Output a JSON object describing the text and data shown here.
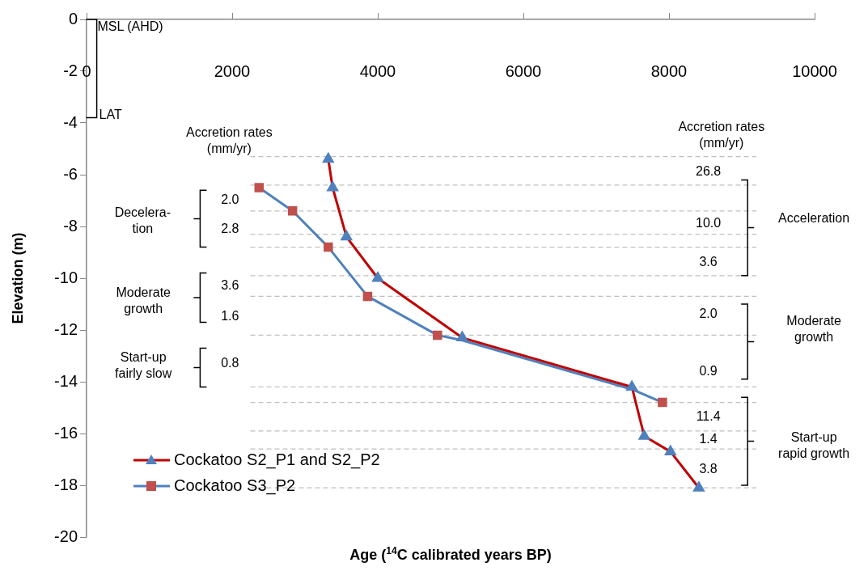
{
  "chart_data": {
    "type": "line",
    "xlabel": "Age ($^{14}$C calibrated years BP)",
    "ylabel": "Elevation (m)",
    "xlim": [
      0,
      10000
    ],
    "xticks": [
      0,
      2000,
      4000,
      6000,
      8000,
      10000
    ],
    "ylim": [
      -20,
      0
    ],
    "yticks": [
      0,
      -2,
      -4,
      -6,
      -8,
      -10,
      -12,
      -14,
      -16,
      -18,
      -20
    ],
    "grid": false,
    "legend": "bottom left",
    "line_style": "solid",
    "series": [
      {
        "name": "Cockatoo S2_P1 and S2_P2",
        "color": "#c00000",
        "marker": "triangle",
        "x": [
          3320,
          3380,
          3570,
          4000,
          5160,
          7490,
          7660,
          8020,
          8410
        ],
        "values": [
          -5.4,
          -6.5,
          -8.4,
          -10.0,
          -12.3,
          -14.2,
          -16.1,
          -16.7,
          -18.1
        ],
        "colors": [
          "#4f81bd",
          "#4f81bd",
          "#4f81bd",
          "#4f81bd",
          "#4f81bd",
          "#4f81bd",
          "#4f81bd",
          "#4f81bd",
          "#4f81bd"
        ]
      },
      {
        "name": "Cockatoo S3_P2",
        "color": "#4f81bd",
        "marker": "square",
        "x": [
          2370,
          2830,
          3320,
          3860,
          4820,
          5160,
          7500,
          7910
        ],
        "values": [
          -6.5,
          -7.4,
          -8.8,
          -10.7,
          -12.2,
          -12.4,
          -14.3,
          -14.8
        ],
        "colors": [
          "#c0504d",
          "#c0504d",
          "#c0504d",
          "#c0504d",
          "#c0504d",
          null,
          null,
          "#c0504d"
        ]
      }
    ],
    "ref_lines": [
      {
        "axis": "y",
        "value": -5.3,
        "color": "#bfbfbf",
        "line_style": "dashed"
      },
      {
        "axis": "y",
        "value": -6.4,
        "color": "#bfbfbf",
        "line_style": "dashed"
      },
      {
        "axis": "y",
        "value": -7.4,
        "color": "#bfbfbf",
        "line_style": "dashed"
      },
      {
        "axis": "y",
        "value": -8.3,
        "color": "#bfbfbf",
        "line_style": "dashed"
      },
      {
        "axis": "y",
        "value": -8.8,
        "color": "#bfbfbf",
        "line_style": "dashed"
      },
      {
        "axis": "y",
        "value": -9.9,
        "color": "#bfbfbf",
        "line_style": "dashed"
      },
      {
        "axis": "y",
        "value": -10.7,
        "color": "#bfbfbf",
        "line_style": "dashed"
      },
      {
        "axis": "y",
        "value": -12.2,
        "color": "#bfbfbf",
        "line_style": "dashed"
      },
      {
        "axis": "y",
        "value": -14.2,
        "color": "#bfbfbf",
        "line_style": "dashed"
      },
      {
        "axis": "y",
        "value": -14.8,
        "color": "#bfbfbf",
        "line_style": "dashed"
      },
      {
        "axis": "y",
        "value": -15.9,
        "color": "#bfbfbf",
        "line_style": "dashed"
      },
      {
        "axis": "y",
        "value": -16.6,
        "color": "#bfbfbf",
        "line_style": "dashed"
      },
      {
        "axis": "y",
        "value": -18.1,
        "color": "#bfbfbf",
        "line_style": "dashed"
      }
    ],
    "annotations": [
      "MSL (AHD)",
      "LAT",
      "Accretion rates\n(mm/yr)",
      "Decelera-\ntion",
      "2.0",
      "2.8",
      "Moderate\ngrowth",
      "3.6",
      "1.6",
      "Start-up\nfairly slow",
      "0.8",
      "Accretion rates\n(mm/yr)",
      "26.8",
      "10.0",
      "3.6",
      "Acceleration",
      "2.0",
      "0.9",
      "Moderate\ngrowth",
      "11.4",
      "1.4",
      "3.8",
      "Start-up\nrapid growth"
    ]
  }
}
